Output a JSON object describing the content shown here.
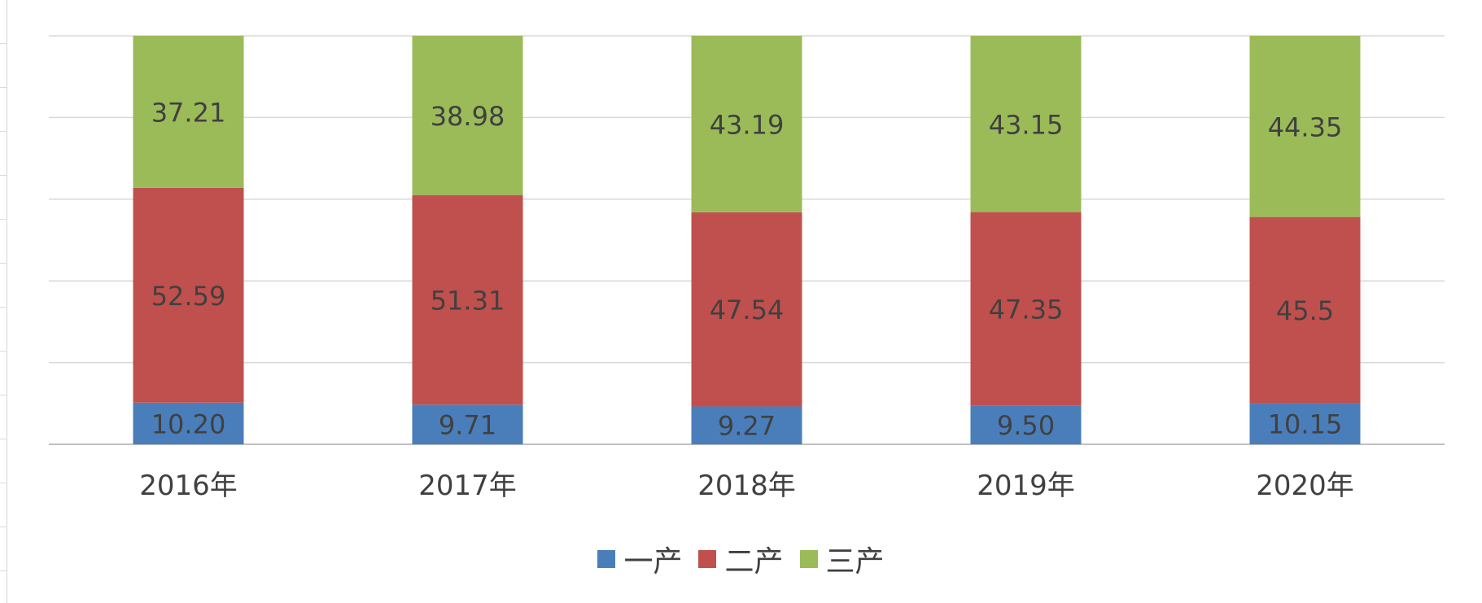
{
  "chart_data": {
    "type": "bar",
    "stacked": true,
    "categories": [
      "2016年",
      "2017年",
      "2018年",
      "2019年",
      "2020年"
    ],
    "series": [
      {
        "name": "一产",
        "color": "#4A7EBB",
        "values": [
          10.2,
          9.71,
          9.27,
          9.5,
          10.15
        ],
        "labels": [
          "10.20",
          "9.71",
          "9.27",
          "9.50",
          "10.15"
        ]
      },
      {
        "name": "二产",
        "color": "#C0504D",
        "values": [
          52.59,
          51.31,
          47.54,
          47.35,
          45.5
        ],
        "labels": [
          "52.59",
          "51.31",
          "47.54",
          "47.35",
          "45.5"
        ]
      },
      {
        "name": "三产",
        "color": "#9BBB59",
        "values": [
          37.21,
          38.98,
          43.19,
          43.15,
          44.35
        ],
        "labels": [
          "37.21",
          "38.98",
          "43.19",
          "43.15",
          "44.35"
        ]
      }
    ],
    "title": "",
    "xlabel": "",
    "ylabel": "",
    "ylim": [
      0,
      100
    ],
    "grid": true,
    "legend_position": "bottom",
    "label_color": "#404040",
    "gridline_color": "#d9d9d9"
  }
}
